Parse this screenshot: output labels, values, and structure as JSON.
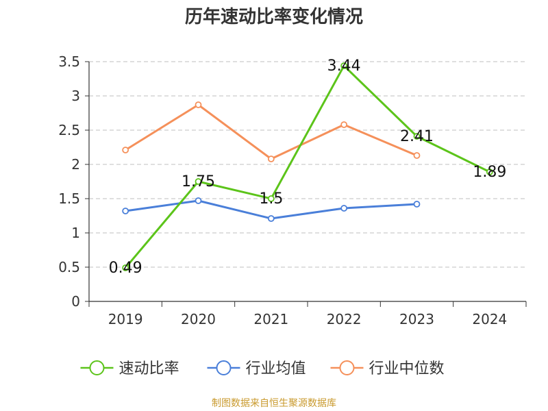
{
  "title": "历年速动比率变化情况",
  "source": "制图数据来自恒生聚源数据库",
  "colors": {
    "grid": "#cccccc",
    "axis": "#333333",
    "text": "#333333"
  },
  "chart_data": {
    "type": "line",
    "categories": [
      "2019",
      "2020",
      "2021",
      "2022",
      "2023",
      "2024"
    ],
    "ylim": [
      0,
      3.5
    ],
    "yticks": [
      "0",
      "0.5",
      "1",
      "1.5",
      "2",
      "2.5",
      "3",
      "3.5"
    ],
    "grid": true,
    "legend_position": "bottom",
    "series": [
      {
        "name": "速动比率",
        "color": "#5cc41a",
        "values": [
          0.49,
          1.75,
          1.5,
          3.44,
          2.41,
          1.89
        ],
        "labels": [
          "0.49",
          "1.75",
          "1.5",
          "3.44",
          "2.41",
          "1.89"
        ]
      },
      {
        "name": "行业均值",
        "color": "#4a7fd9",
        "values": [
          1.32,
          1.47,
          1.21,
          1.36,
          1.42,
          null
        ],
        "labels": null
      },
      {
        "name": "行业中位数",
        "color": "#f5905a",
        "values": [
          2.21,
          2.87,
          2.08,
          2.58,
          2.13,
          null
        ],
        "labels": null
      }
    ]
  }
}
